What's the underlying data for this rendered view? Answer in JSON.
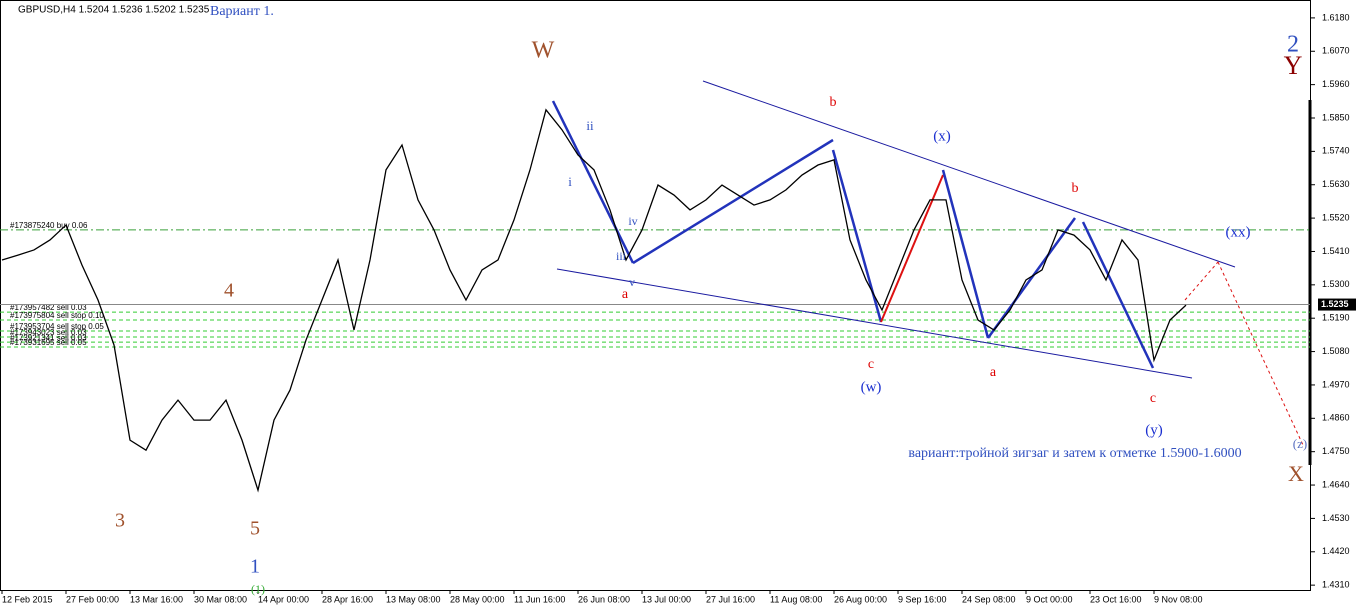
{
  "chart_data": {
    "type": "line",
    "title": "GBPUSD,H4 1.5204 1.5236 1.5202 1.5235",
    "subtitle": "Вариант 1.",
    "categories": [
      "12 Feb 2015",
      null,
      null,
      null,
      "27 Feb 00:00",
      null,
      null,
      null,
      "13 Mar 16:00",
      null,
      null,
      null,
      "30 Mar 08:00",
      null,
      null,
      null,
      "14 Apr 00:00",
      null,
      null,
      null,
      "28 Apr 16:00",
      null,
      null,
      null,
      "13 May 08:00",
      null,
      null,
      null,
      "28 May 00:00",
      null,
      null,
      null,
      "11 Jun 16:00",
      null,
      null,
      null,
      "26 Jun 08:00",
      null,
      null,
      null,
      "13 Jul 00:00",
      null,
      null,
      null,
      "27 Jul 16:00",
      null,
      null,
      null,
      "11 Aug 08:00",
      null,
      null,
      null,
      "26 Aug 00:00",
      null,
      null,
      null,
      "9 Sep 16:00",
      null,
      null,
      null,
      "24 Sep 08:00",
      null,
      null,
      null,
      "9 Oct 00:00",
      null,
      null,
      null,
      "23 Oct 16:00",
      null,
      null,
      null,
      "9 Nov 08:00",
      null,
      null,
      null,
      null,
      null,
      null,
      null,
      null,
      null
    ],
    "series": [
      {
        "name": "GBPUSD,H4",
        "color": "#000000",
        "values": [
          1.5382,
          1.5398,
          1.5415,
          1.5448,
          1.5497,
          1.5365,
          1.525,
          1.5102,
          1.4788,
          1.4755,
          1.4854,
          1.492,
          1.4854,
          1.4854,
          1.492,
          1.4788,
          1.4623,
          1.4854,
          1.4953,
          1.5118,
          1.525,
          1.5382,
          1.5151,
          1.5382,
          1.5679,
          1.5761,
          1.558,
          1.5481,
          1.5349,
          1.525,
          1.5349,
          1.5382,
          1.5514,
          1.5679,
          1.5877,
          1.5811,
          1.5728,
          1.5679,
          1.5547,
          1.5382,
          1.5481,
          1.5629,
          1.5596,
          1.5547,
          1.558,
          1.5629,
          1.5596,
          1.5563,
          1.558,
          1.5613,
          1.5662,
          1.5695,
          1.5712,
          1.5448,
          1.5316,
          1.5217,
          1.5349,
          1.5481,
          1.558,
          1.558,
          1.5316,
          1.5184,
          1.5151,
          1.5217,
          1.5316,
          1.5349,
          1.5481,
          1.5464,
          1.5415,
          1.5316,
          1.5448,
          1.5382,
          1.5052,
          1.5184,
          1.5233,
          null,
          null,
          null,
          null,
          null,
          null,
          null
        ]
      }
    ],
    "ylim": [
      1.4294,
      1.6239
    ],
    "yticks": [
      {
        "value": 1.618,
        "label": "1.6180"
      },
      {
        "value": 1.607,
        "label": "1.6070"
      },
      {
        "value": 1.596,
        "label": "1.5960"
      },
      {
        "value": 1.585,
        "label": "1.5850"
      },
      {
        "value": 1.574,
        "label": "1.5740"
      },
      {
        "value": 1.563,
        "label": "1.5630"
      },
      {
        "value": 1.552,
        "label": "1.5520"
      },
      {
        "value": 1.541,
        "label": "1.5410"
      },
      {
        "value": 1.53,
        "label": "1.5300"
      },
      {
        "value": 1.519,
        "label": "1.5190"
      },
      {
        "value": 1.508,
        "label": "1.5080"
      },
      {
        "value": 1.497,
        "label": "1.4970"
      },
      {
        "value": 1.486,
        "label": "1.4860"
      },
      {
        "value": 1.475,
        "label": "1.4750"
      },
      {
        "value": 1.464,
        "label": "1.4640"
      },
      {
        "value": 1.453,
        "label": "1.4530"
      },
      {
        "value": 1.442,
        "label": "1.4420"
      },
      {
        "value": 1.431,
        "label": "1.4310"
      }
    ],
    "last_price": 1.5235,
    "order_levels": [
      {
        "value": 1.5481,
        "label": "#173875240 buy 0.06",
        "color": "#3aa03a"
      },
      {
        "value": 1.521,
        "label": "#173957482 sell 0.03",
        "color": "#33cc33"
      },
      {
        "value": 1.5184,
        "label": "#173975804 sell stop 0.10",
        "color": "#33cc33"
      },
      {
        "value": 1.5148,
        "label": "#173953704 sell stop 0.05",
        "color": "#33cc33"
      },
      {
        "value": 1.5128,
        "label": "#173943023 sell 0.03",
        "color": "#33cc33"
      },
      {
        "value": 1.5111,
        "label": "#173921341 sell 0.03",
        "color": "#33cc33"
      },
      {
        "value": 1.5095,
        "label": "#173931695 sell 0.05",
        "color": "#33cc33"
      }
    ],
    "annotations": [
      {
        "text": "W",
        "color": "#a0522d"
      },
      {
        "text": "2",
        "color": "#3050c0"
      },
      {
        "text": "Y",
        "color": "#8b0000"
      },
      {
        "text": "4",
        "color": "#a0522d"
      },
      {
        "text": "3",
        "color": "#a0522d"
      },
      {
        "text": "5",
        "color": "#a0522d"
      },
      {
        "text": "1",
        "color": "#3050c0"
      },
      {
        "text": "(1)",
        "color": "#33aa33"
      },
      {
        "text": "ii",
        "color": "#3050c0"
      },
      {
        "text": "i",
        "color": "#3050c0"
      },
      {
        "text": "iv",
        "color": "#3050c0"
      },
      {
        "text": "iii",
        "color": "#3050c0"
      },
      {
        "text": "v",
        "color": "#3050c0"
      },
      {
        "text": "a",
        "color": "#dd0000"
      },
      {
        "text": "b",
        "color": "#dd0000"
      },
      {
        "text": "(x)",
        "color": "#1a2fd0"
      },
      {
        "text": "b",
        "color": "#dd0000"
      },
      {
        "text": "(xx)",
        "color": "#1a2fd0"
      },
      {
        "text": "c",
        "color": "#dd0000"
      },
      {
        "text": "(w)",
        "color": "#1a2fd0"
      },
      {
        "text": "a",
        "color": "#dd0000"
      },
      {
        "text": "c",
        "color": "#dd0000"
      },
      {
        "text": "(y)",
        "color": "#1a2fd0"
      },
      {
        "text": "(z)",
        "color": "#5a70c0"
      },
      {
        "text": "X",
        "color": "#a0522d"
      },
      {
        "text": "вариант:тройной зигзаг и затем к отметке 1.5900-1.6000",
        "color": "#3050c0"
      }
    ]
  }
}
